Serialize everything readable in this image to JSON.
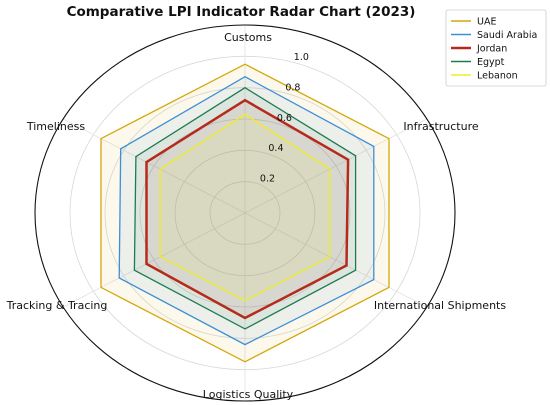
{
  "chart_data": {
    "type": "radar",
    "title": "Comparative LPI Indicator Radar Chart (2023)",
    "axes": [
      "Customs",
      "Infrastructure",
      "International Shipments",
      "Logistics Quality",
      "Tracking & Tracing",
      "Timeliness"
    ],
    "radial_ticks": [
      "0.2",
      "0.4",
      "0.6",
      "0.8",
      "1.0"
    ],
    "radial_tick_values": [
      0.2,
      0.4,
      0.6,
      0.8,
      1.0
    ],
    "rlim": [
      0,
      1.2
    ],
    "grid": true,
    "legend_position": "top-right",
    "series": [
      {
        "name": "UAE",
        "color": "#d4a80c",
        "values": [
          0.95,
          0.95,
          0.95,
          0.95,
          0.95,
          0.95
        ]
      },
      {
        "name": "Saudi Arabia",
        "color": "#3c8fd6",
        "values": [
          0.87,
          0.85,
          0.85,
          0.84,
          0.83,
          0.82
        ]
      },
      {
        "name": "Jordan",
        "color": "#b52a1b",
        "values": [
          0.72,
          0.68,
          0.67,
          0.67,
          0.65,
          0.65
        ]
      },
      {
        "name": "Egypt",
        "color": "#1e7a55",
        "values": [
          0.8,
          0.73,
          0.73,
          0.74,
          0.73,
          0.72
        ]
      },
      {
        "name": "Lebanon",
        "color": "#eeee22",
        "values": [
          0.63,
          0.56,
          0.56,
          0.56,
          0.56,
          0.56
        ]
      }
    ]
  }
}
